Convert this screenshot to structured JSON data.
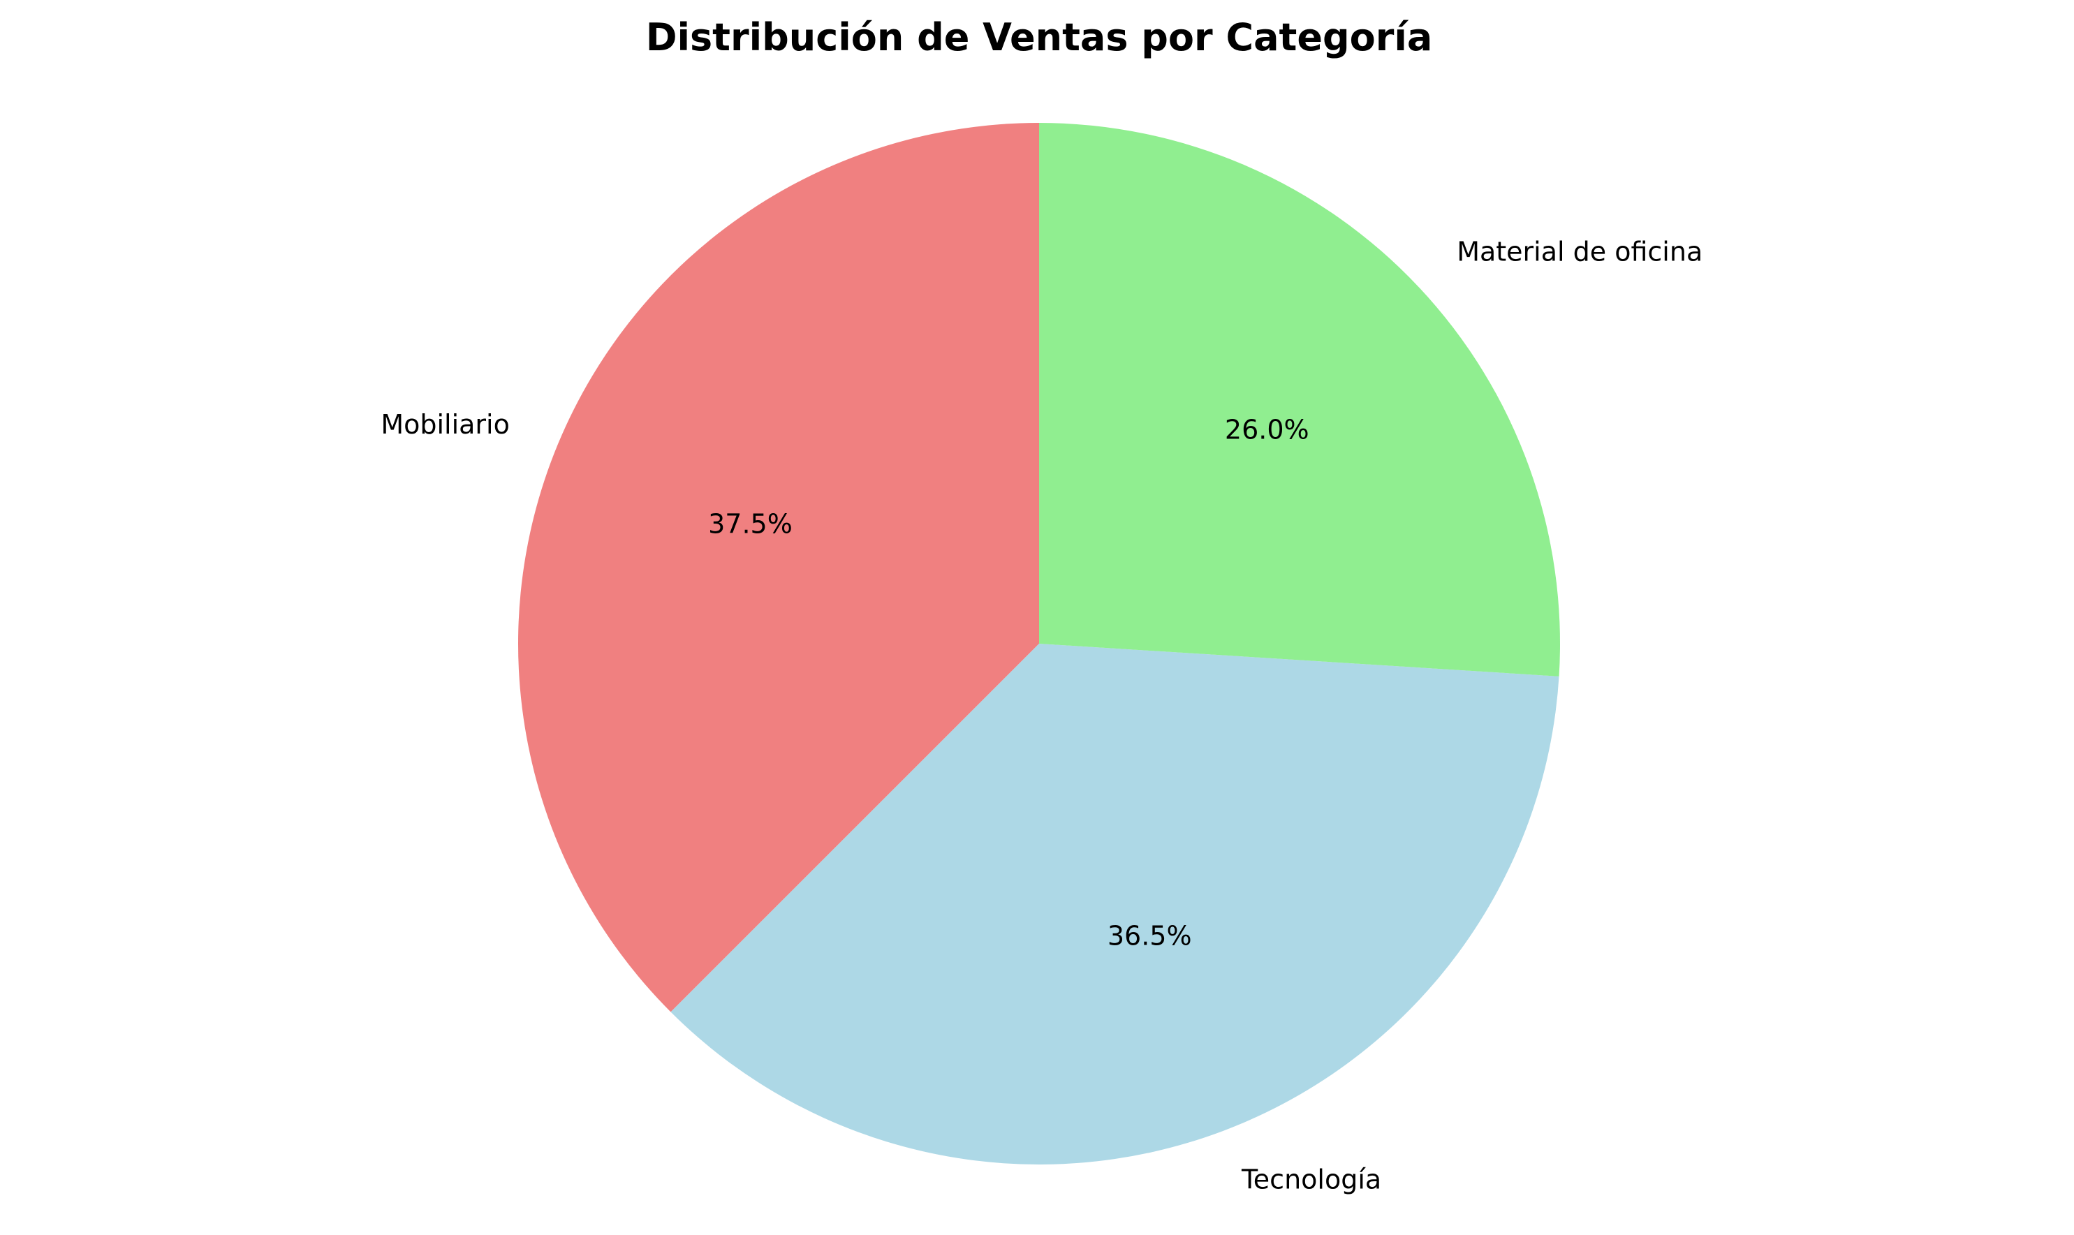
{
  "chart_data": {
    "type": "pie",
    "title": "Distribución de Ventas por Categoría",
    "start_angle": 90,
    "direction": "counterclockwise",
    "slices": [
      {
        "label": "Mobiliario",
        "value": 37.5,
        "pct_label": "37.5%",
        "color": "#F08080"
      },
      {
        "label": "Tecnología",
        "value": 36.5,
        "pct_label": "36.5%",
        "color": "#ADD8E6"
      },
      {
        "label": "Material de oficina",
        "value": 26.0,
        "pct_label": "26.0%",
        "color": "#90EE90"
      }
    ]
  }
}
